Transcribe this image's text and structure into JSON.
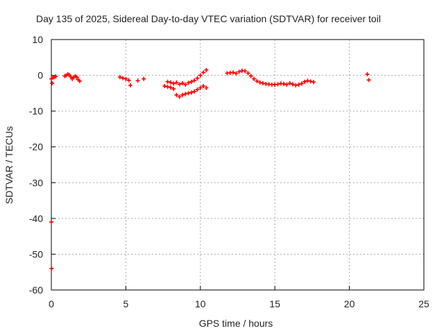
{
  "chart_data": {
    "type": "scatter",
    "title": "Day 135 of 2025, Sidereal Day-to-day VTEC variation (SDTVAR) for receiver toil",
    "xlabel": "GPS time / hours",
    "ylabel": "SDTVAR / TECUs",
    "xlim": [
      0,
      25
    ],
    "ylim": [
      -60,
      10
    ],
    "xticks": [
      "0",
      "5",
      "10",
      "15",
      "20",
      "25"
    ],
    "yticks": [
      "10",
      "0",
      "-10",
      "-20",
      "-30",
      "-40",
      "-50",
      "-60"
    ],
    "grid": true,
    "marker": "+",
    "series": [
      {
        "name": "SDTVAR",
        "color": "#ff0000",
        "points": [
          [
            0.0,
            -41.0
          ],
          [
            0.02,
            -54.0
          ],
          [
            0.05,
            -2.2
          ],
          [
            0.0,
            -1.0
          ],
          [
            0.1,
            -0.6
          ],
          [
            0.2,
            -0.5
          ],
          [
            0.3,
            -0.3
          ],
          [
            0.9,
            -0.2
          ],
          [
            1.0,
            0.0
          ],
          [
            1.1,
            0.3
          ],
          [
            1.2,
            0.1
          ],
          [
            1.3,
            -0.4
          ],
          [
            1.4,
            -1.0
          ],
          [
            1.5,
            -0.6
          ],
          [
            1.6,
            -0.2
          ],
          [
            1.7,
            -0.5
          ],
          [
            1.8,
            -1.2
          ],
          [
            1.9,
            -1.6
          ],
          [
            4.6,
            -0.5
          ],
          [
            4.8,
            -0.8
          ],
          [
            5.0,
            -1.0
          ],
          [
            5.2,
            -1.4
          ],
          [
            5.3,
            -2.8
          ],
          [
            5.8,
            -1.5
          ],
          [
            6.2,
            -1.0
          ],
          [
            7.6,
            -3.0
          ],
          [
            7.8,
            -1.8
          ],
          [
            8.0,
            -2.0
          ],
          [
            8.2,
            -2.3
          ],
          [
            8.4,
            -2.0
          ],
          [
            8.6,
            -2.5
          ],
          [
            8.8,
            -2.2
          ],
          [
            9.0,
            -2.6
          ],
          [
            9.2,
            -2.1
          ],
          [
            9.4,
            -1.8
          ],
          [
            9.6,
            -1.4
          ],
          [
            9.8,
            -0.8
          ],
          [
            10.0,
            0.0
          ],
          [
            10.2,
            0.8
          ],
          [
            10.4,
            1.5
          ],
          [
            7.8,
            -3.2
          ],
          [
            8.0,
            -3.4
          ],
          [
            8.2,
            -3.8
          ],
          [
            8.4,
            -5.5
          ],
          [
            8.6,
            -6.0
          ],
          [
            8.8,
            -5.5
          ],
          [
            9.0,
            -5.2
          ],
          [
            9.2,
            -5.0
          ],
          [
            9.4,
            -4.8
          ],
          [
            9.6,
            -4.5
          ],
          [
            9.8,
            -4.0
          ],
          [
            10.0,
            -3.5
          ],
          [
            10.2,
            -3.0
          ],
          [
            10.4,
            -3.5
          ],
          [
            11.8,
            0.6
          ],
          [
            12.0,
            0.7
          ],
          [
            12.2,
            0.8
          ],
          [
            12.4,
            0.5
          ],
          [
            12.6,
            1.0
          ],
          [
            12.8,
            1.3
          ],
          [
            13.0,
            1.2
          ],
          [
            13.2,
            0.6
          ],
          [
            13.4,
            -0.2
          ],
          [
            13.6,
            -1.0
          ],
          [
            13.8,
            -1.6
          ],
          [
            14.0,
            -2.0
          ],
          [
            14.2,
            -2.2
          ],
          [
            14.4,
            -2.4
          ],
          [
            14.6,
            -2.5
          ],
          [
            14.8,
            -2.6
          ],
          [
            15.0,
            -2.6
          ],
          [
            15.2,
            -2.5
          ],
          [
            15.4,
            -2.3
          ],
          [
            15.6,
            -2.4
          ],
          [
            15.8,
            -2.6
          ],
          [
            16.0,
            -2.2
          ],
          [
            16.2,
            -2.5
          ],
          [
            16.4,
            -2.8
          ],
          [
            16.6,
            -2.6
          ],
          [
            16.8,
            -2.3
          ],
          [
            17.0,
            -1.8
          ],
          [
            17.2,
            -1.5
          ],
          [
            17.4,
            -1.7
          ],
          [
            17.6,
            -1.9
          ],
          [
            21.2,
            0.3
          ],
          [
            21.3,
            -1.3
          ]
        ]
      }
    ]
  }
}
